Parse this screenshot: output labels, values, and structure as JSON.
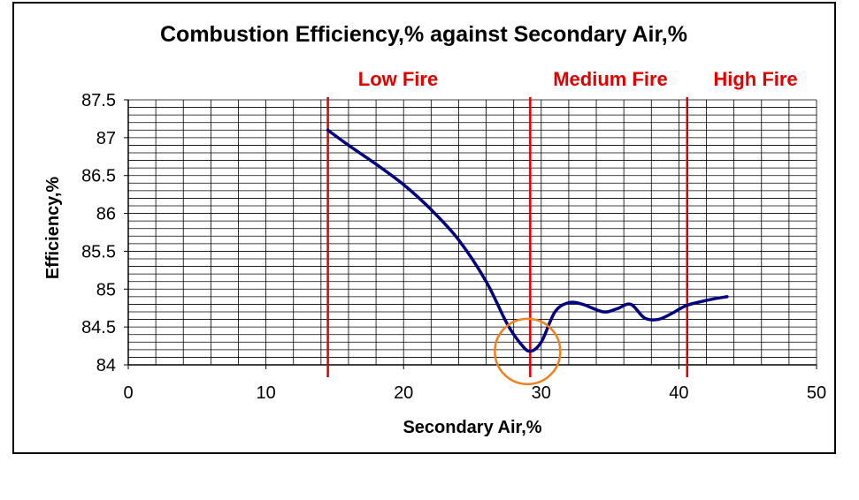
{
  "chart_data": {
    "type": "line",
    "title": "Combustion Efficiency,% against Secondary Air,%",
    "xlabel": "Secondary Air,%",
    "ylabel": "Efficiency,%",
    "xlim": [
      0,
      50
    ],
    "ylim": [
      84,
      87.5
    ],
    "x_ticks": [
      "0",
      "10",
      "20",
      "30",
      "40",
      "50"
    ],
    "y_ticks": [
      "84",
      "84.5",
      "85",
      "85.5",
      "86",
      "86.5",
      "87",
      "87.5"
    ],
    "grid": true,
    "series": [
      {
        "x": [
          14.5,
          16,
          18,
          20,
          22,
          24,
          26,
          27.5,
          28.5,
          29.2,
          30,
          31,
          32,
          33,
          34.5,
          35.5,
          36.5,
          37.5,
          38.5,
          39.5,
          40.5,
          41.5,
          42.5,
          43.5
        ],
        "y": [
          87.1,
          86.9,
          86.65,
          86.38,
          86.05,
          85.65,
          85.1,
          84.55,
          84.28,
          84.18,
          84.3,
          84.7,
          84.82,
          84.8,
          84.7,
          84.74,
          84.8,
          84.62,
          84.6,
          84.68,
          84.78,
          84.83,
          84.87,
          84.9
        ],
        "color": "#000080"
      }
    ],
    "regions": [
      {
        "label": "Low Fire",
        "x": 14.5
      },
      {
        "label": "Medium Fire",
        "x": 29.2
      },
      {
        "label": "High Fire",
        "x": 40.6
      }
    ],
    "region_line_color": "#e00000",
    "highlight": {
      "x": 29.2,
      "y": 84.2,
      "color": "#f08020"
    }
  }
}
